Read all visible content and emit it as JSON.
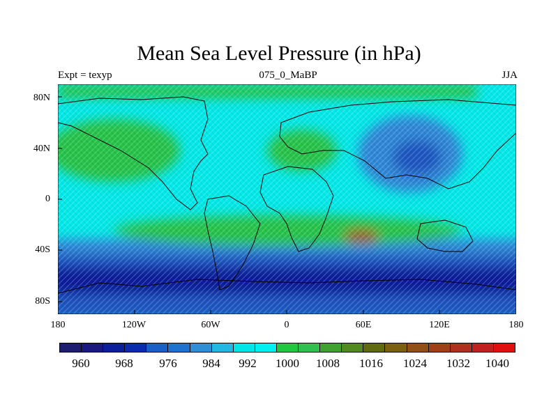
{
  "title": "Mean Sea Level Pressure (in hPa)",
  "left_label": "Expt = texyp",
  "center_label": "075_0_MaBP",
  "right_label": "JJA",
  "y_ticks": [
    "80N",
    "40N",
    "0",
    "40S",
    "80S"
  ],
  "x_ticks": [
    "180",
    "120W",
    "60W",
    "0",
    "60E",
    "120E",
    "180"
  ],
  "colorbar": {
    "labels": [
      "960",
      "968",
      "976",
      "984",
      "992",
      "1000",
      "1008",
      "1016",
      "1024",
      "1032",
      "1040"
    ],
    "colors": [
      "#1e1e6e",
      "#191980",
      "#0b1f9a",
      "#0a2ab0",
      "#1a5fc8",
      "#1f73d0",
      "#2f8fd6",
      "#23b8e2",
      "#00e6e6",
      "#00f0f0",
      "#20c840",
      "#30c050",
      "#40a030",
      "#508a20",
      "#606a10",
      "#7a6010",
      "#905018",
      "#a04018",
      "#b03020",
      "#c02020",
      "#e01010"
    ]
  },
  "map_colors": {
    "deep_low": "#0a1f9a",
    "low": "#1a55c0",
    "mid_low": "#2e86d6",
    "mid": "#24c8e6",
    "background": "#00e8e8",
    "high": "#28c24a",
    "very_high": "#9a5a20",
    "coast": "#000000"
  }
}
